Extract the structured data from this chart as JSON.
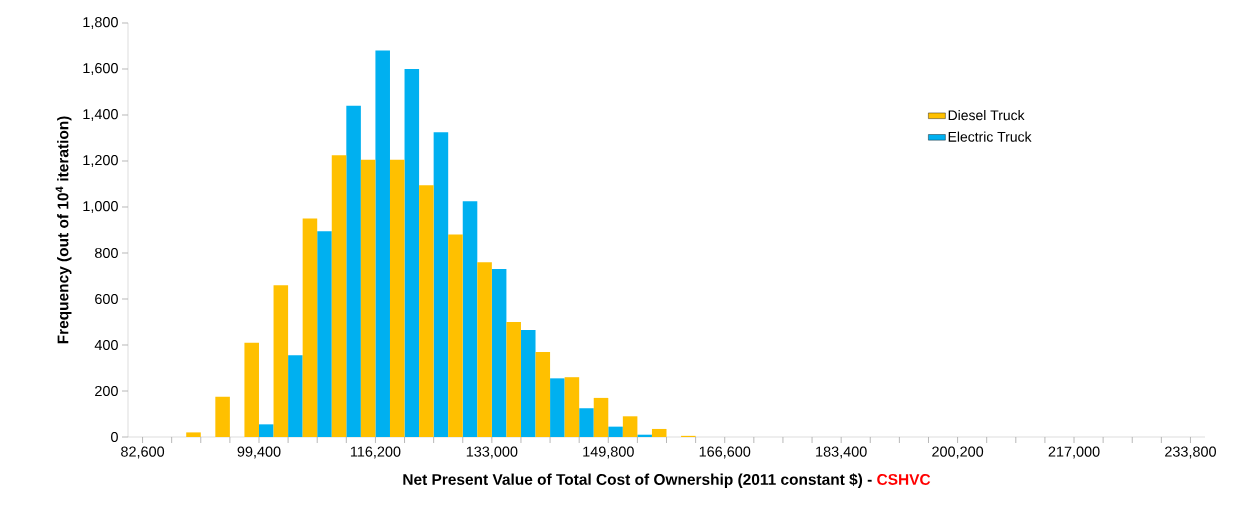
{
  "chart_data": {
    "type": "histogram",
    "xlabel": "Net Present Value of Total Cost of Ownership (2011 constant $) -",
    "ylabel": "Frequency (out of 10$^{4}$ iteration)",
    "annotations": [
      "CSHVC"
    ],
    "bins": [
      82600,
      86800,
      91000,
      95200,
      99400,
      103600,
      107800,
      112000,
      116200,
      120400,
      124600,
      128800,
      133000,
      137200,
      141400,
      145600,
      149800,
      154000,
      158200,
      162400,
      166600,
      170800,
      175000,
      179200,
      183400,
      187600,
      191800,
      196000,
      200200,
      204400,
      208600,
      212800,
      217000,
      221200,
      225400,
      229600,
      233800
    ],
    "series": [
      {
        "name": "Electric Truck",
        "color": "#00b0f0",
        "values": [
          0,
          0,
          0,
          0,
          55,
          355,
          895,
          1440,
          1680,
          1600,
          1325,
          1025,
          730,
          465,
          255,
          125,
          45,
          10,
          0,
          0,
          0,
          0,
          0,
          0,
          0,
          0,
          0,
          0,
          0,
          0,
          0,
          0,
          0,
          0,
          0,
          0
        ]
      },
      {
        "name": "Diesel Truck",
        "color": "#ffc000",
        "values": [
          0,
          20,
          175,
          410,
          660,
          950,
          1225,
          1205,
          1205,
          1095,
          880,
          760,
          500,
          370,
          260,
          170,
          90,
          35,
          5,
          0,
          0,
          0,
          0,
          0,
          0,
          0,
          0,
          0,
          0,
          0,
          0,
          0,
          0,
          0,
          0,
          0
        ]
      }
    ],
    "xlim": [
      80500,
      235900
    ],
    "xticks": [
      {
        "value": 82600,
        "label": "82,600"
      },
      {
        "value": 86800,
        "label": null
      },
      {
        "value": 91000,
        "label": null
      },
      {
        "value": 95200,
        "label": null
      },
      {
        "value": 99400,
        "label": "99,400"
      },
      {
        "value": 103600,
        "label": null
      },
      {
        "value": 107800,
        "label": null
      },
      {
        "value": 112000,
        "label": null
      },
      {
        "value": 116200,
        "label": "116,200"
      },
      {
        "value": 120400,
        "label": null
      },
      {
        "value": 124600,
        "label": null
      },
      {
        "value": 128800,
        "label": null
      },
      {
        "value": 133000,
        "label": "133,000"
      },
      {
        "value": 137200,
        "label": null
      },
      {
        "value": 141400,
        "label": null
      },
      {
        "value": 145600,
        "label": null
      },
      {
        "value": 149800,
        "label": "149,800"
      },
      {
        "value": 154000,
        "label": null
      },
      {
        "value": 158200,
        "label": null
      },
      {
        "value": 162400,
        "label": null
      },
      {
        "value": 166600,
        "label": "166,600"
      },
      {
        "value": 170800,
        "label": null
      },
      {
        "value": 175000,
        "label": null
      },
      {
        "value": 179200,
        "label": null
      },
      {
        "value": 183400,
        "label": "183,400"
      },
      {
        "value": 187600,
        "label": null
      },
      {
        "value": 191800,
        "label": null
      },
      {
        "value": 196000,
        "label": null
      },
      {
        "value": 200200,
        "label": "200,200"
      },
      {
        "value": 204400,
        "label": null
      },
      {
        "value": 208600,
        "label": null
      },
      {
        "value": 212800,
        "label": null
      },
      {
        "value": 217000,
        "label": "217,000"
      },
      {
        "value": 221200,
        "label": null
      },
      {
        "value": 225400,
        "label": null
      },
      {
        "value": 229600,
        "label": null
      },
      {
        "value": 233800,
        "label": "233,800"
      }
    ],
    "ylim": [
      0,
      1800
    ],
    "yticks": [
      0,
      {
        "value": 200,
        "label": "200"
      },
      {
        "value": 400,
        "label": "400"
      },
      {
        "value": 600,
        "label": "600"
      },
      {
        "value": 800,
        "label": "800"
      },
      {
        "value": 1000,
        "label": "1,000"
      },
      {
        "value": 1200,
        "label": "1,200"
      },
      {
        "value": 1400,
        "label": "1,400"
      },
      {
        "value": 1600,
        "label": "1,600"
      },
      {
        "value": 1800,
        "label": "1,800"
      }
    ],
    "legend": "top right",
    "grid": false
  }
}
